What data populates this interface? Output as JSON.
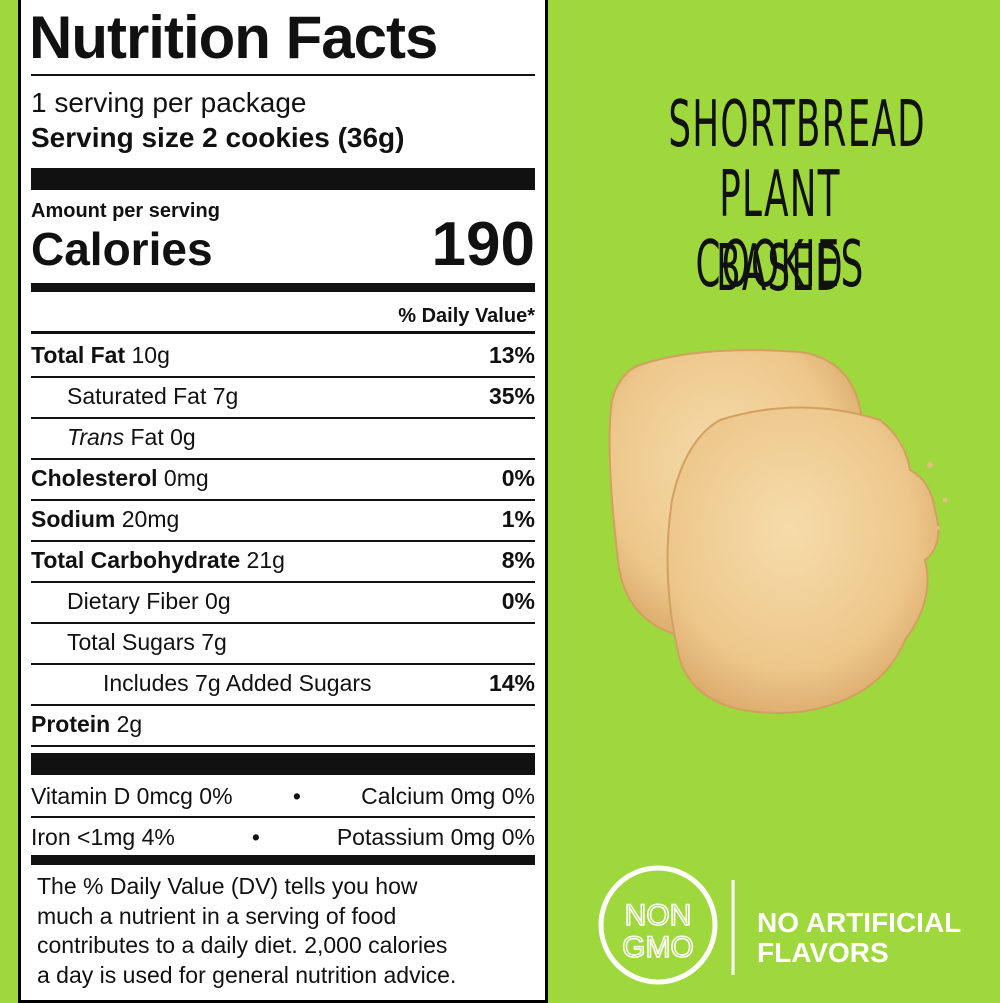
{
  "nutrition_facts": {
    "title": "Nutrition Facts",
    "servings": "1 serving per package",
    "serving_size": "Serving size 2 cookies (36g)",
    "amount_per_serving": "Amount per serving",
    "calories_label": "Calories",
    "calories": "190",
    "daily_value_header": "% Daily Value*",
    "nutrients": [
      {
        "name": "Total Fat",
        "amount": "10g",
        "dv": "13%",
        "sub": [
          {
            "name": "Saturated Fat 7g",
            "dv": "35%"
          },
          {
            "name_italic": "Trans",
            "name": "Fat 0g"
          }
        ]
      },
      {
        "name": "Cholesterol",
        "amount": "0mg",
        "dv": "0%"
      },
      {
        "name": "Sodium",
        "amount": "20mg",
        "dv": "1%"
      },
      {
        "name": "Total Carbohydrate",
        "amount": "21g",
        "dv": "8%",
        "sub": [
          {
            "name": "Dietary Fiber 0g",
            "dv": "0%"
          },
          {
            "name": "Total Sugars 7g",
            "sub": [
              {
                "name": "Includes 7g Added Sugars",
                "dv": "14%"
              }
            ]
          }
        ]
      },
      {
        "name": "Protein",
        "amount": "2g"
      }
    ],
    "micronutrients": [
      [
        "Vitamin D 0mcg 0%",
        "Calcium 0mg 0%"
      ],
      [
        "Iron <1mg 4%",
        "Potassium 0mg 0%"
      ]
    ],
    "footnote": [
      "The % Daily Value (DV) tells you how",
      "much a nutrient in a serving of food",
      "contributes to a daily diet. 2,000 calories",
      "a day is used for general nutrition advice."
    ]
  },
  "product": {
    "headline": [
      "SHORTBREAD",
      "PLANT BASED",
      "COOKIES"
    ],
    "badge_non_gmo": [
      "NON",
      "GMO"
    ],
    "badge_flavors": [
      "NO ARTIFICIAL",
      "FLAVORS"
    ]
  }
}
